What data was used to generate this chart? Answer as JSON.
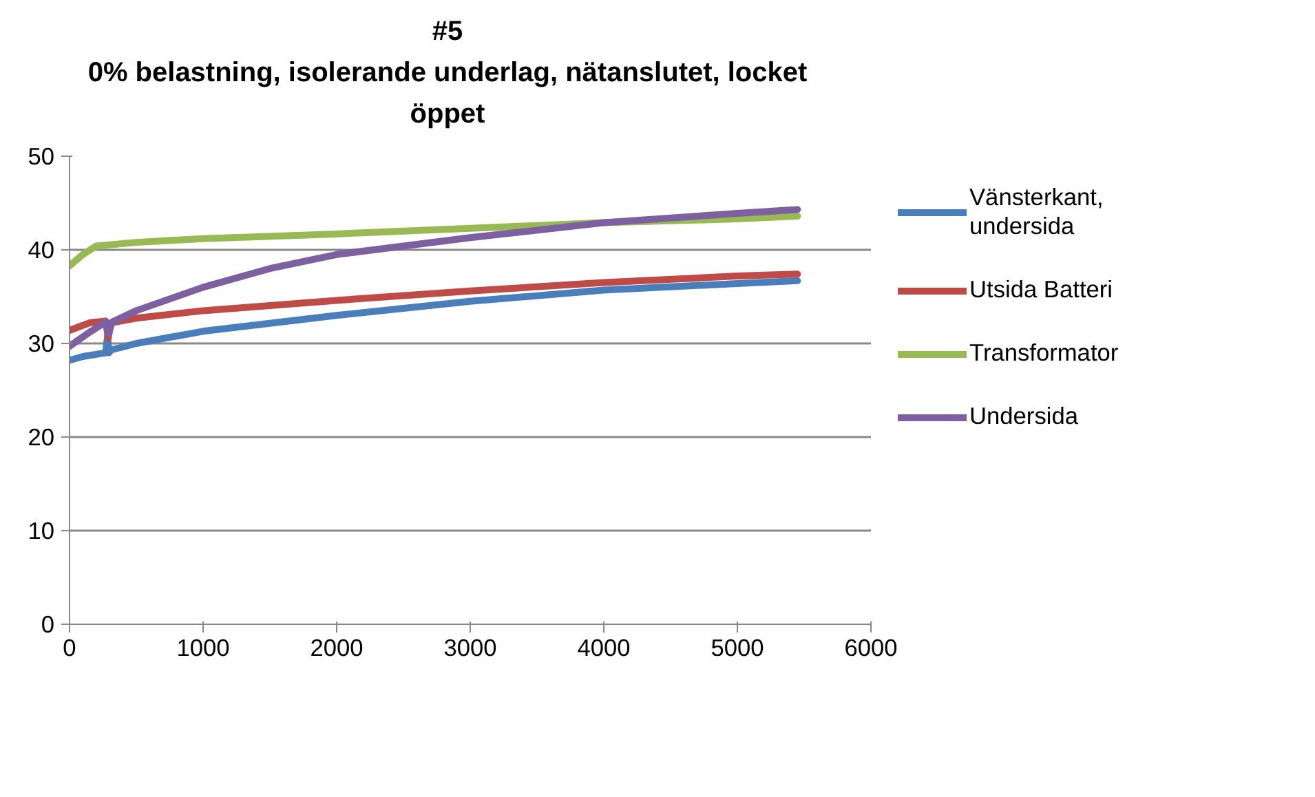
{
  "chart_data": {
    "type": "line",
    "title": "#5\n0% belastning, isolerande underlag, nätanslutet, locket\nöppet",
    "xlim": [
      0,
      6000
    ],
    "xticks": [
      0,
      1000,
      2000,
      3000,
      4000,
      5000,
      6000
    ],
    "ylim": [
      0,
      50
    ],
    "yticks": [
      0,
      10,
      20,
      30,
      40,
      50
    ],
    "grid": "y",
    "legend": "right",
    "marker": "none",
    "line_style": "solid",
    "series": [
      {
        "name": "Vänsterkant, undersida",
        "color": "#4a7ebb",
        "x": [
          0,
          100,
          270,
          285,
          295,
          310,
          500,
          1000,
          2000,
          3000,
          4000,
          5000,
          5450
        ],
        "values": [
          28.2,
          28.6,
          29.0,
          30.8,
          29.0,
          29.3,
          30.0,
          31.3,
          33.0,
          34.5,
          35.7,
          36.4,
          36.7
        ]
      },
      {
        "name": "Utsida Batteri",
        "color": "#be4b48",
        "x": [
          0,
          150,
          270,
          290,
          310,
          500,
          1000,
          2000,
          3000,
          4000,
          5000,
          5450
        ],
        "values": [
          31.4,
          32.2,
          32.4,
          30.6,
          32.2,
          32.7,
          33.5,
          34.6,
          35.6,
          36.5,
          37.2,
          37.4
        ]
      },
      {
        "name": "Transformator",
        "color": "#98b954",
        "x": [
          0,
          100,
          200,
          500,
          1000,
          2000,
          3000,
          4000,
          5000,
          5450
        ],
        "values": [
          38.3,
          39.5,
          40.4,
          40.8,
          41.2,
          41.7,
          42.3,
          42.9,
          43.3,
          43.6
        ]
      },
      {
        "name": "Undersida",
        "color": "#7d60a0",
        "x": [
          0,
          150,
          270,
          290,
          320,
          500,
          1000,
          1500,
          2000,
          3000,
          4000,
          5000,
          5450
        ],
        "values": [
          29.7,
          31.2,
          32.3,
          31.0,
          32.3,
          33.5,
          36.0,
          38.0,
          39.5,
          41.3,
          42.9,
          43.9,
          44.3
        ]
      }
    ]
  }
}
